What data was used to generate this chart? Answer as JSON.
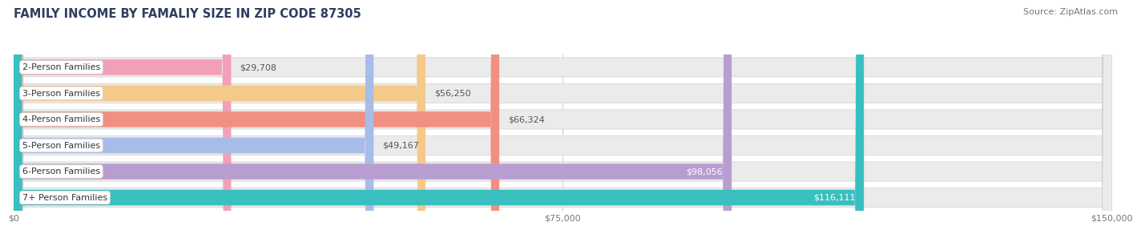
{
  "title": "FAMILY INCOME BY FAMALIY SIZE IN ZIP CODE 87305",
  "source": "Source: ZipAtlas.com",
  "categories": [
    "2-Person Families",
    "3-Person Families",
    "4-Person Families",
    "5-Person Families",
    "6-Person Families",
    "7+ Person Families"
  ],
  "values": [
    29708,
    56250,
    66324,
    49167,
    98056,
    116111
  ],
  "labels": [
    "$29,708",
    "$56,250",
    "$66,324",
    "$49,167",
    "$98,056",
    "$116,111"
  ],
  "bar_colors": [
    "#f2a0b8",
    "#f5c98a",
    "#f09080",
    "#a8bce8",
    "#b89ed0",
    "#3abfc0"
  ],
  "label_colors": [
    "#555555",
    "#555555",
    "#555555",
    "#555555",
    "#ffffff",
    "#ffffff"
  ],
  "bg_bar_color": "#ebebeb",
  "xlim_max": 150000,
  "xticks": [
    0,
    75000,
    150000
  ],
  "xtick_labels": [
    "$0",
    "$75,000",
    "$150,000"
  ],
  "title_color": "#2d3f5e",
  "title_fontsize": 10.5,
  "source_fontsize": 8,
  "label_fontsize": 8,
  "category_fontsize": 8
}
